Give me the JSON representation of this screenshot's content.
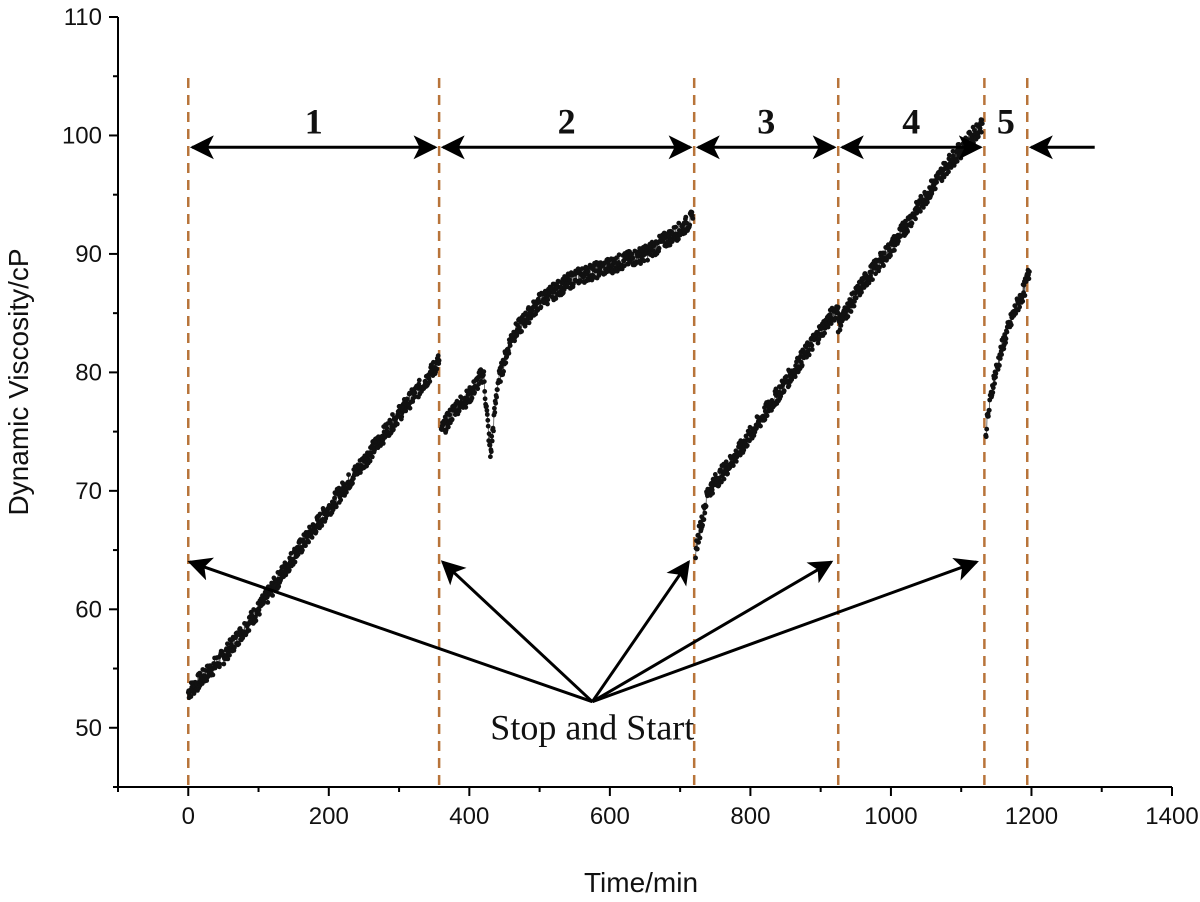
{
  "chart_data": {
    "type": "scatter",
    "title": "",
    "xlabel": "Time/min",
    "ylabel": "Dynamic Viscosity/cP",
    "xlim": [
      -100,
      1400
    ],
    "ylim": [
      45,
      110
    ],
    "xticks": [
      0,
      200,
      400,
      600,
      800,
      1000,
      1200,
      1400
    ],
    "yticks": [
      50,
      60,
      70,
      80,
      90,
      100,
      110
    ],
    "grid": false,
    "colors": {
      "points": "#111111",
      "dashed_lines": "#b8743a",
      "arrows": "#000000",
      "axis": "#000000"
    },
    "stop_start_times": [
      0,
      357,
      720,
      925,
      1133,
      1194
    ],
    "regions": [
      {
        "label": "1",
        "x_start": 0,
        "x_end": 357
      },
      {
        "label": "2",
        "x_start": 357,
        "x_end": 720
      },
      {
        "label": "3",
        "x_start": 720,
        "x_end": 925
      },
      {
        "label": "4",
        "x_start": 925,
        "x_end": 1133
      },
      {
        "label": "5",
        "x_start": 1133,
        "x_end": 1194
      }
    ],
    "region_arrow_y": 99,
    "annotation": {
      "text": "Stop and Start",
      "origin": {
        "x": 575,
        "y": 52.2
      },
      "targets": [
        {
          "x": 2,
          "y": 64
        },
        {
          "x": 362,
          "y": 64
        },
        {
          "x": 712,
          "y": 64
        },
        {
          "x": 915,
          "y": 64
        },
        {
          "x": 1122,
          "y": 64
        }
      ]
    },
    "series": [
      {
        "segment": 1,
        "x": [
          0,
          50,
          100,
          150,
          200,
          250,
          300,
          340,
          357
        ],
        "y": [
          53,
          56,
          60,
          64.5,
          68.5,
          72.5,
          76.5,
          79.5,
          81
        ]
      },
      {
        "segment": 2,
        "x": [
          360,
          380,
          400,
          420,
          430,
          440,
          460,
          500,
          550,
          600,
          650,
          700,
          718
        ],
        "y": [
          75,
          77,
          78,
          80,
          73,
          79,
          83,
          86,
          88,
          89,
          90,
          92,
          93
        ]
      },
      {
        "segment": 3,
        "x": [
          722,
          740,
          780,
          820,
          860,
          900,
          925
        ],
        "y": [
          65,
          70,
          73,
          76.5,
          80,
          83.5,
          85.5
        ]
      },
      {
        "segment": 4,
        "x": [
          925,
          960,
          1000,
          1040,
          1080,
          1110,
          1130
        ],
        "y": [
          84,
          87.5,
          90.5,
          94,
          97.5,
          99.5,
          101
        ]
      },
      {
        "segment": 5,
        "x": [
          1135,
          1145,
          1160,
          1175,
          1190,
          1197
        ],
        "y": [
          75,
          79,
          82.5,
          85,
          87,
          88.5
        ]
      }
    ]
  }
}
